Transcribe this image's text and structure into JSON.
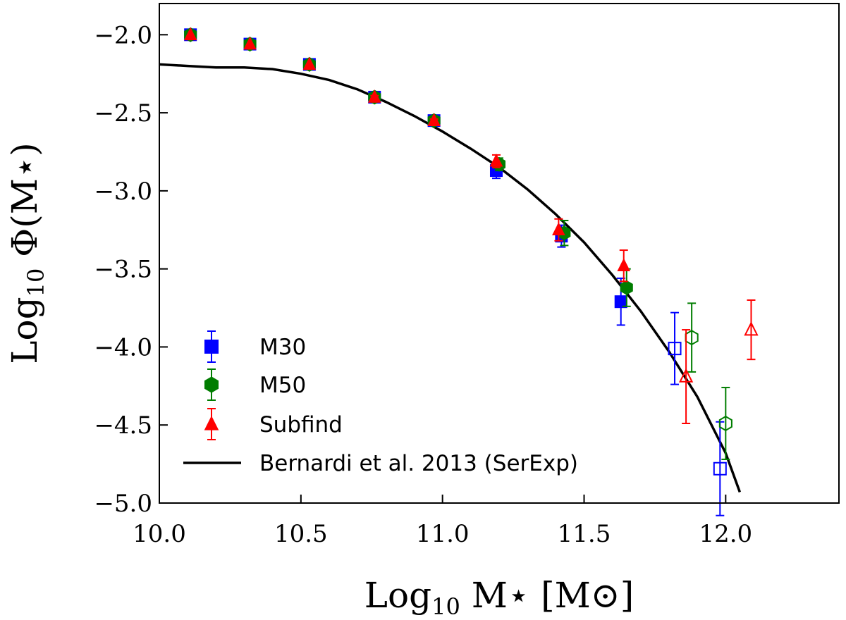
{
  "chart_data": {
    "type": "scatter",
    "title": "",
    "xlabel": "Log10 M⋆ [M⊙]",
    "ylabel": "Log10 Φ(M⋆)",
    "xlabel_parts": {
      "main": "Log",
      "sub": "10",
      "rest": " M⋆ [M⊙]"
    },
    "ylabel_parts": {
      "main": "Log",
      "sub": "10",
      "rest": " Φ(M⋆)"
    },
    "xlim": [
      10.0,
      12.4
    ],
    "ylim": [
      -5.0,
      -1.8
    ],
    "xticks": [
      10.0,
      10.5,
      11.0,
      11.5,
      12.0
    ],
    "xtick_labels": [
      "10.0",
      "10.5",
      "11.0",
      "11.5",
      "12.0"
    ],
    "yticks": [
      -5.0,
      -4.5,
      -4.0,
      -3.5,
      -3.0,
      -2.5,
      -2.0
    ],
    "ytick_labels": [
      "−5.0",
      "−4.5",
      "−4.0",
      "−3.5",
      "−3.0",
      "−2.5",
      "−2.0"
    ],
    "grid": false,
    "legend_position": "lower-left",
    "series": [
      {
        "name": "M30",
        "marker": "square",
        "color": "#0000ff",
        "points": [
          {
            "x": 10.11,
            "y": -2.0,
            "err": 0.0,
            "open": false
          },
          {
            "x": 10.32,
            "y": -2.06,
            "err": 0.0,
            "open": false
          },
          {
            "x": 10.53,
            "y": -2.19,
            "err": 0.0,
            "open": false
          },
          {
            "x": 10.76,
            "y": -2.4,
            "err": 0.01,
            "open": false
          },
          {
            "x": 10.97,
            "y": -2.55,
            "err": 0.01,
            "open": false
          },
          {
            "x": 11.19,
            "y": -2.87,
            "err": 0.05,
            "open": false
          },
          {
            "x": 11.42,
            "y": -3.29,
            "err": 0.07,
            "open": false
          },
          {
            "x": 11.63,
            "y": -3.71,
            "err": 0.15,
            "open": false
          },
          {
            "x": 11.82,
            "y": -4.01,
            "err": 0.23,
            "open": true
          },
          {
            "x": 11.98,
            "y": -4.78,
            "err": 0.3,
            "open": true
          }
        ]
      },
      {
        "name": "M50",
        "marker": "hexagon",
        "color": "#007d00",
        "points": [
          {
            "x": 10.11,
            "y": -2.0,
            "err": 0.0,
            "open": false
          },
          {
            "x": 10.32,
            "y": -2.06,
            "err": 0.0,
            "open": false
          },
          {
            "x": 10.53,
            "y": -2.19,
            "err": 0.0,
            "open": false
          },
          {
            "x": 10.76,
            "y": -2.4,
            "err": 0.01,
            "open": false
          },
          {
            "x": 10.97,
            "y": -2.55,
            "err": 0.01,
            "open": false
          },
          {
            "x": 11.2,
            "y": -2.83,
            "err": 0.04,
            "open": false
          },
          {
            "x": 11.43,
            "y": -3.27,
            "err": 0.08,
            "open": false
          },
          {
            "x": 11.65,
            "y": -3.62,
            "err": 0.12,
            "open": false
          },
          {
            "x": 11.88,
            "y": -3.94,
            "err": 0.22,
            "open": true
          },
          {
            "x": 12.0,
            "y": -4.49,
            "err": 0.23,
            "open": true
          }
        ]
      },
      {
        "name": "Subfind",
        "marker": "triangle",
        "color": "#ff0000",
        "points": [
          {
            "x": 10.11,
            "y": -2.0,
            "err": 0.0,
            "open": false
          },
          {
            "x": 10.32,
            "y": -2.06,
            "err": 0.0,
            "open": false
          },
          {
            "x": 10.53,
            "y": -2.19,
            "err": 0.0,
            "open": false
          },
          {
            "x": 10.76,
            "y": -2.4,
            "err": 0.01,
            "open": false
          },
          {
            "x": 10.97,
            "y": -2.55,
            "err": 0.01,
            "open": false
          },
          {
            "x": 11.19,
            "y": -2.81,
            "err": 0.04,
            "open": false
          },
          {
            "x": 11.41,
            "y": -3.25,
            "err": 0.07,
            "open": false
          },
          {
            "x": 11.64,
            "y": -3.48,
            "err": 0.1,
            "open": false
          },
          {
            "x": 11.86,
            "y": -4.19,
            "err": 0.3,
            "open": true
          },
          {
            "x": 12.09,
            "y": -3.89,
            "err": 0.19,
            "open": true
          }
        ]
      }
    ],
    "model_curve": {
      "name": "Bernardi et al. 2013 (SerExp)",
      "color": "#000000",
      "x": [
        10.0,
        10.1,
        10.2,
        10.3,
        10.4,
        10.5,
        10.6,
        10.7,
        10.8,
        10.9,
        11.0,
        11.1,
        11.2,
        11.3,
        11.4,
        11.5,
        11.6,
        11.7,
        11.8,
        11.9,
        12.0,
        12.05
      ],
      "y": [
        -2.19,
        -2.2,
        -2.21,
        -2.21,
        -2.22,
        -2.25,
        -2.29,
        -2.35,
        -2.43,
        -2.52,
        -2.62,
        -2.73,
        -2.85,
        -2.99,
        -3.15,
        -3.33,
        -3.54,
        -3.77,
        -4.03,
        -4.32,
        -4.68,
        -4.93
      ]
    }
  }
}
